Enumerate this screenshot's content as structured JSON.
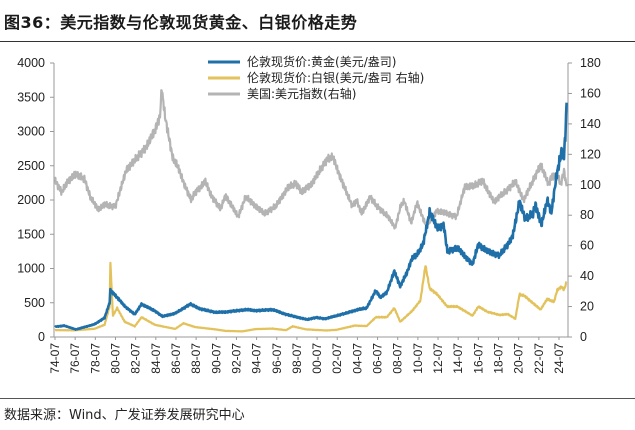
{
  "title": "图36：美元指数与伦敦现货黄金、白银价格走势",
  "source": "数据来源：Wind、广发证券发展研究中心",
  "chart_data": {
    "type": "line",
    "title": "",
    "legend_position": "top-center",
    "grid": false,
    "left_axis": {
      "range": [
        0,
        4000
      ],
      "ticks": [
        "0",
        "500",
        "1000",
        "1500",
        "2000",
        "2500",
        "3000",
        "3500",
        "4000"
      ]
    },
    "right_axis": {
      "range": [
        0,
        180
      ],
      "ticks": [
        "0",
        "20",
        "40",
        "60",
        "80",
        "100",
        "120",
        "140",
        "160",
        "180"
      ]
    },
    "x_ticks": [
      "74-07",
      "76-07",
      "78-07",
      "80-07",
      "82-07",
      "84-07",
      "86-07",
      "88-07",
      "90-07",
      "92-07",
      "94-07",
      "96-07",
      "98-07",
      "00-07",
      "02-07",
      "04-07",
      "06-07",
      "08-07",
      "10-07",
      "12-07",
      "14-07",
      "16-07",
      "18-07",
      "20-07",
      "22-07",
      "24-07"
    ],
    "series": [
      {
        "name": "伦敦现货价:黄金(美元/盎司)",
        "axis": "left",
        "color": "#1f6fa8",
        "x": [
          "1974-07",
          "1975-06",
          "1976-08",
          "1977-06",
          "1978-06",
          "1979-06",
          "1979-12",
          "1980-01",
          "1980-06",
          "1981-06",
          "1982-06",
          "1983-02",
          "1984-06",
          "1985-03",
          "1986-06",
          "1987-12",
          "1988-12",
          "1990-06",
          "1991-06",
          "1993-07",
          "1994-06",
          "1996-02",
          "1997-06",
          "1999-07",
          "2000-06",
          "2001-04",
          "2002-06",
          "2003-06",
          "2004-06",
          "2005-06",
          "2006-05",
          "2006-10",
          "2007-06",
          "2008-03",
          "2008-10",
          "2009-06",
          "2009-12",
          "2010-06",
          "2011-01",
          "2011-09",
          "2012-06",
          "2013-02",
          "2013-06",
          "2014-06",
          "2015-12",
          "2016-07",
          "2017-06",
          "2018-08",
          "2019-06",
          "2019-12",
          "2020-08",
          "2021-03",
          "2021-12",
          "2022-03",
          "2022-10",
          "2023-05",
          "2023-10",
          "2024-04",
          "2024-10",
          "2025-01",
          "2025-03",
          "2025-04"
        ],
        "values": [
          150,
          165,
          110,
          145,
          185,
          280,
          500,
          680,
          620,
          450,
          330,
          480,
          380,
          300,
          345,
          480,
          410,
          360,
          365,
          400,
          385,
          400,
          330,
          255,
          285,
          265,
          310,
          350,
          395,
          425,
          680,
          580,
          650,
          960,
          740,
          940,
          1150,
          1200,
          1350,
          1820,
          1600,
          1620,
          1250,
          1300,
          1060,
          1350,
          1250,
          1190,
          1350,
          1480,
          1980,
          1720,
          1800,
          1930,
          1640,
          1990,
          1830,
          2350,
          2700,
          2650,
          3050,
          3420
        ]
      },
      {
        "name": "伦敦现货价:白银(美元/盎司 右轴)",
        "axis": "right",
        "color": "#e3c25c",
        "x": [
          "1974-07",
          "1976-06",
          "1978-06",
          "1979-06",
          "1979-12",
          "1980-01",
          "1980-04",
          "1980-09",
          "1981-06",
          "1982-06",
          "1983-02",
          "1984-06",
          "1986-06",
          "1987-04",
          "1988-06",
          "1990-06",
          "1991-06",
          "1993-02",
          "1994-06",
          "1996-02",
          "1997-06",
          "1998-02",
          "1999-06",
          "2001-06",
          "2002-06",
          "2004-04",
          "2005-06",
          "2006-05",
          "2007-06",
          "2008-03",
          "2008-10",
          "2009-12",
          "2010-10",
          "2011-04",
          "2011-09",
          "2012-06",
          "2013-06",
          "2014-06",
          "2015-12",
          "2016-07",
          "2017-06",
          "2018-08",
          "2019-06",
          "2020-03",
          "2020-08",
          "2021-02",
          "2022-09",
          "2023-05",
          "2024-01",
          "2024-05",
          "2024-10",
          "2025-01",
          "2025-04"
        ],
        "values": [
          4.5,
          4.4,
          5.4,
          8,
          20,
          48,
          14,
          19,
          10,
          7,
          13,
          8,
          5.3,
          9,
          6.5,
          5,
          4,
          3.7,
          5.2,
          5.5,
          4.5,
          7,
          5,
          4.3,
          4.7,
          7.5,
          7.2,
          13,
          13,
          19,
          10,
          17,
          24,
          47,
          32,
          28,
          20,
          20,
          14,
          20,
          16.5,
          14.5,
          15,
          12,
          28,
          27,
          18,
          25,
          23,
          31,
          33,
          31,
          36
        ]
      },
      {
        "name": "美国:美元指数(右轴)",
        "axis": "right",
        "color": "#b4b4b4",
        "x": [
          "1974-07",
          "1975-03",
          "1975-09",
          "1976-06",
          "1977-06",
          "1978-01",
          "1978-10",
          "1979-06",
          "1980-01",
          "1980-07",
          "1981-08",
          "1982-06",
          "1982-12",
          "1983-08",
          "1984-06",
          "1984-12",
          "1985-02",
          "1985-06",
          "1986-03",
          "1986-09",
          "1987-06",
          "1988-01",
          "1988-06",
          "1989-06",
          "1990-01",
          "1990-12",
          "1991-06",
          "1992-09",
          "1993-06",
          "1994-06",
          "1995-04",
          "1996-06",
          "1997-08",
          "1998-06",
          "1999-01",
          "2000-01",
          "2001-07",
          "2002-02",
          "2002-12",
          "2003-06",
          "2004-01",
          "2004-06",
          "2004-12",
          "2005-10",
          "2006-06",
          "2007-06",
          "2008-04",
          "2008-11",
          "2009-03",
          "2009-11",
          "2010-06",
          "2011-05",
          "2012-06",
          "2013-06",
          "2014-05",
          "2015-03",
          "2016-01",
          "2016-12",
          "2017-06",
          "2018-02",
          "2019-06",
          "2020-03",
          "2021-01",
          "2022-09",
          "2023-07",
          "2023-10",
          "2024-06",
          "2024-09",
          "2025-01",
          "2025-04"
        ],
        "values": [
          103,
          95,
          101,
          107,
          104,
          92,
          84,
          87,
          86,
          86,
          110,
          116,
          120,
          125,
          136,
          145,
          163,
          145,
          118,
          112,
          99,
          90,
          95,
          102,
          93,
          84,
          93,
          79,
          92,
          86,
          81,
          86,
          98,
          101,
          95,
          101,
          117,
          118,
          103,
          95,
          86,
          90,
          81,
          92,
          86,
          80,
          72,
          87,
          89,
          75,
          88,
          73,
          83,
          81,
          79,
          99,
          99,
          103,
          96,
          89,
          97,
          102,
          90,
          113,
          100,
          106,
          105,
          100,
          109,
          99
        ]
      }
    ]
  }
}
